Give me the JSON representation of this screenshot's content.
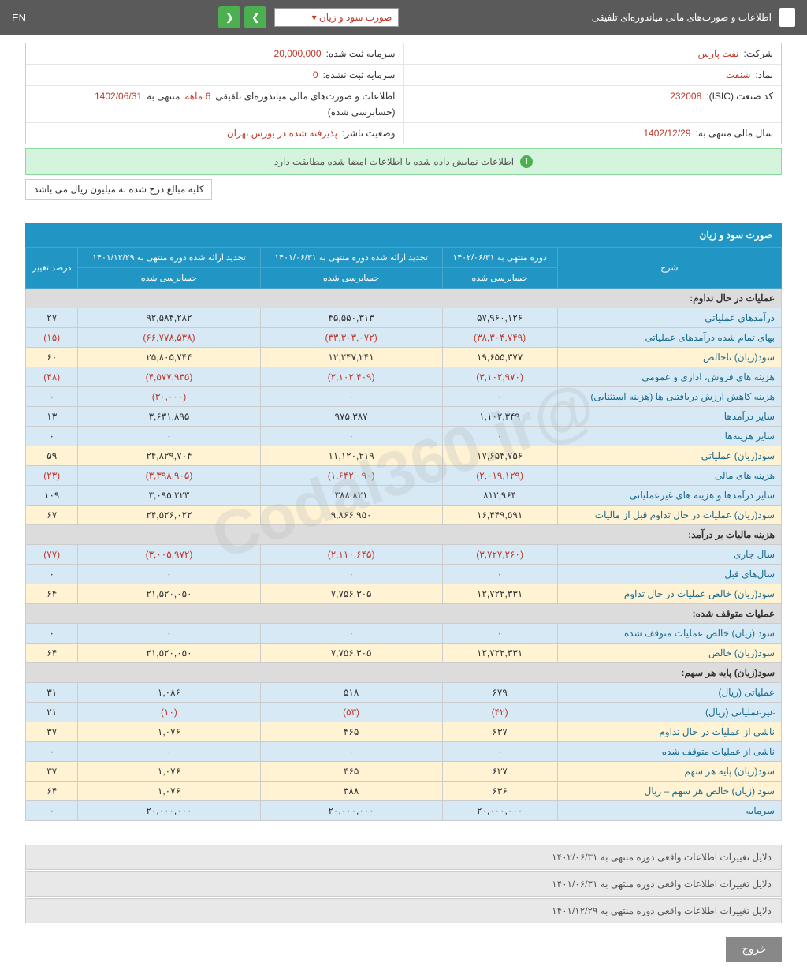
{
  "topbar": {
    "title": "اطلاعات و صورت‌های مالی میاندوره‌ای تلفیقی",
    "dropdown": "صورت سود و زیان",
    "lang": "EN"
  },
  "info": {
    "company_label": "شرکت:",
    "company_value": "نفت پارس",
    "capital_reg_label": "سرمایه ثبت شده:",
    "capital_reg_value": "20,000,000",
    "symbol_label": "نماد:",
    "symbol_value": "شنفت",
    "capital_unreg_label": "سرمایه ثبت نشده:",
    "capital_unreg_value": "0",
    "isic_label": "کد صنعت (ISIC):",
    "isic_value": "232008",
    "report_label": "اطلاعات و صورت‌های مالی میاندوره‌ای تلفیقی",
    "period": "6 ماهه",
    "period_end": "منتهی به",
    "period_date": "1402/06/31",
    "audited": "(حسابرسی شده)",
    "fiscal_label": "سال مالی منتهی به:",
    "fiscal_value": "1402/12/29",
    "status_label": "وضعیت ناشر:",
    "status_value": "پذیرفته شده در بورس تهران"
  },
  "banner": "اطلاعات نمایش داده شده با اطلاعات امضا شده مطابقت دارد",
  "note": "کلیه مبالغ درج شده به میلیون ریال می باشد",
  "section": "صورت سود و زیان",
  "headers": {
    "desc": "شرح",
    "c1a": "دوره منتهی به ۱۴۰۲/۰۶/۳۱",
    "c1b": "حسابرسی شده",
    "c2a": "تجدید ارائه شده دوره منتهی به ۱۴۰۱/۰۶/۳۱",
    "c2b": "حسابرسی شده",
    "c3a": "تجدید ارائه شده دوره منتهی به ۱۴۰۱/۱۲/۲۹",
    "c3b": "حسابرسی شده",
    "c4": "درصد تغییر"
  },
  "rows": [
    {
      "type": "hdr",
      "desc": "عملیات در حال تداوم:"
    },
    {
      "type": "blue",
      "desc": "درآمدهای عملیاتی",
      "v1": "۵۷,۹۶۰,۱۲۶",
      "v2": "۴۵,۵۵۰,۳۱۳",
      "v3": "۹۲,۵۸۴,۲۸۲",
      "pct": "۲۷"
    },
    {
      "type": "blue",
      "desc": "بهای تمام شده درآمدهای عملیاتی",
      "v1": "(۳۸,۳۰۴,۷۴۹)",
      "v1n": true,
      "v2": "(۳۳,۳۰۳,۰۷۲)",
      "v2n": true,
      "v3": "(۶۶,۷۷۸,۵۳۸)",
      "v3n": true,
      "pct": "(۱۵)",
      "pctn": true
    },
    {
      "type": "yellow",
      "desc": "سود(زیان) ناخالص",
      "v1": "۱۹,۶۵۵,۳۷۷",
      "v2": "۱۲,۲۴۷,۲۴۱",
      "v3": "۲۵,۸۰۵,۷۴۴",
      "pct": "۶۰"
    },
    {
      "type": "blue",
      "desc": "هزینه های فروش، اداری و عمومی",
      "v1": "(۳,۱۰۲,۹۷۰)",
      "v1n": true,
      "v2": "(۲,۱۰۲,۴۰۹)",
      "v2n": true,
      "v3": "(۴,۵۷۷,۹۳۵)",
      "v3n": true,
      "pct": "(۴۸)",
      "pctn": true
    },
    {
      "type": "blue",
      "desc": "هزینه کاهش ارزش دریافتنی ها (هزینه استثنایی)",
      "v1": "۰",
      "v2": "۰",
      "v3": "(۳۰,۰۰۰)",
      "v3n": true,
      "pct": "۰"
    },
    {
      "type": "blue",
      "desc": "سایر درآمدها",
      "v1": "۱,۱۰۲,۳۴۹",
      "v2": "۹۷۵,۳۸۷",
      "v3": "۳,۶۳۱,۸۹۵",
      "pct": "۱۳"
    },
    {
      "type": "blue",
      "desc": "سایر هزینه‌ها",
      "v1": "۰",
      "v2": "۰",
      "v3": "۰",
      "pct": "۰"
    },
    {
      "type": "yellow",
      "desc": "سود(زیان) عملیاتی",
      "v1": "۱۷,۶۵۴,۷۵۶",
      "v2": "۱۱,۱۲۰,۲۱۹",
      "v3": "۲۴,۸۲۹,۷۰۴",
      "pct": "۵۹"
    },
    {
      "type": "blue",
      "desc": "هزینه های مالی",
      "v1": "(۲,۰۱۹,۱۲۹)",
      "v1n": true,
      "v2": "(۱,۶۴۲,۰۹۰)",
      "v2n": true,
      "v3": "(۳,۳۹۸,۹۰۵)",
      "v3n": true,
      "pct": "(۲۳)",
      "pctn": true
    },
    {
      "type": "blue",
      "desc": "سایر درآمدها و هزینه های غیرعملیاتی",
      "v1": "۸۱۳,۹۶۴",
      "v2": "۳۸۸,۸۲۱",
      "v3": "۳,۰۹۵,۲۲۳",
      "pct": "۱۰۹"
    },
    {
      "type": "yellow",
      "desc": "سود(زیان) عملیات در حال تداوم قبل از مالیات",
      "v1": "۱۶,۴۴۹,۵۹۱",
      "v2": "۹,۸۶۶,۹۵۰",
      "v3": "۲۴,۵۲۶,۰۲۲",
      "pct": "۶۷"
    },
    {
      "type": "hdr",
      "desc": "هزینه مالیات بر درآمد:"
    },
    {
      "type": "blue",
      "desc": "سال جاری",
      "v1": "(۳,۷۲۷,۲۶۰)",
      "v1n": true,
      "v2": "(۲,۱۱۰,۶۴۵)",
      "v2n": true,
      "v3": "(۳,۰۰۵,۹۷۲)",
      "v3n": true,
      "pct": "(۷۷)",
      "pctn": true
    },
    {
      "type": "blue",
      "desc": "سال‌های قبل",
      "v1": "۰",
      "v2": "۰",
      "v3": "۰",
      "pct": "۰"
    },
    {
      "type": "yellow",
      "desc": "سود(زیان) خالص عملیات در حال تداوم",
      "v1": "۱۲,۷۲۲,۳۳۱",
      "v2": "۷,۷۵۶,۳۰۵",
      "v3": "۲۱,۵۲۰,۰۵۰",
      "pct": "۶۴"
    },
    {
      "type": "hdr",
      "desc": "عملیات متوقف شده:"
    },
    {
      "type": "blue",
      "desc": "سود (زیان) خالص عملیات متوقف شده",
      "v1": "۰",
      "v2": "۰",
      "v3": "۰",
      "pct": "۰"
    },
    {
      "type": "yellow",
      "desc": "سود(زیان) خالص",
      "v1": "۱۲,۷۲۲,۳۳۱",
      "v2": "۷,۷۵۶,۳۰۵",
      "v3": "۲۱,۵۲۰,۰۵۰",
      "pct": "۶۴"
    },
    {
      "type": "hdr",
      "desc": "سود(زیان) پایه هر سهم:"
    },
    {
      "type": "blue",
      "desc": "عملیاتی (ریال)",
      "v1": "۶۷۹",
      "v2": "۵۱۸",
      "v3": "۱,۰۸۶",
      "pct": "۳۱"
    },
    {
      "type": "blue",
      "desc": "غیرعملیاتی (ریال)",
      "v1": "(۴۲)",
      "v1n": true,
      "v2": "(۵۳)",
      "v2n": true,
      "v3": "(۱۰)",
      "v3n": true,
      "pct": "۲۱"
    },
    {
      "type": "yellow",
      "desc": "ناشی از عملیات در حال تداوم",
      "v1": "۶۳۷",
      "v2": "۴۶۵",
      "v3": "۱,۰۷۶",
      "pct": "۳۷"
    },
    {
      "type": "blue",
      "desc": "ناشی از عملیات متوقف شده",
      "v1": "۰",
      "v2": "۰",
      "v3": "۰",
      "pct": "۰"
    },
    {
      "type": "yellow",
      "desc": "سود(زیان) پایه هر سهم",
      "v1": "۶۳۷",
      "v2": "۴۶۵",
      "v3": "۱,۰۷۶",
      "pct": "۳۷"
    },
    {
      "type": "yellow",
      "desc": "سود (زیان) خالص هر سهم – ریال",
      "v1": "۶۳۶",
      "v2": "۳۸۸",
      "v3": "۱,۰۷۶",
      "pct": "۶۴"
    },
    {
      "type": "blue",
      "desc": "سرمایه",
      "v1": "۲۰,۰۰۰,۰۰۰",
      "v2": "۲۰,۰۰۰,۰۰۰",
      "v3": "۲۰,۰۰۰,۰۰۰",
      "pct": "۰"
    }
  ],
  "footers": [
    "دلایل تغییرات اطلاعات واقعی دوره منتهی به ۱۴۰۲/۰۶/۳۱",
    "دلایل تغییرات اطلاعات واقعی دوره منتهی به ۱۴۰۱/۰۶/۳۱",
    "دلایل تغییرات اطلاعات واقعی دوره منتهی به ۱۴۰۱/۱۲/۲۹"
  ],
  "exit": "خروج",
  "watermark": "@Codal360.ir"
}
